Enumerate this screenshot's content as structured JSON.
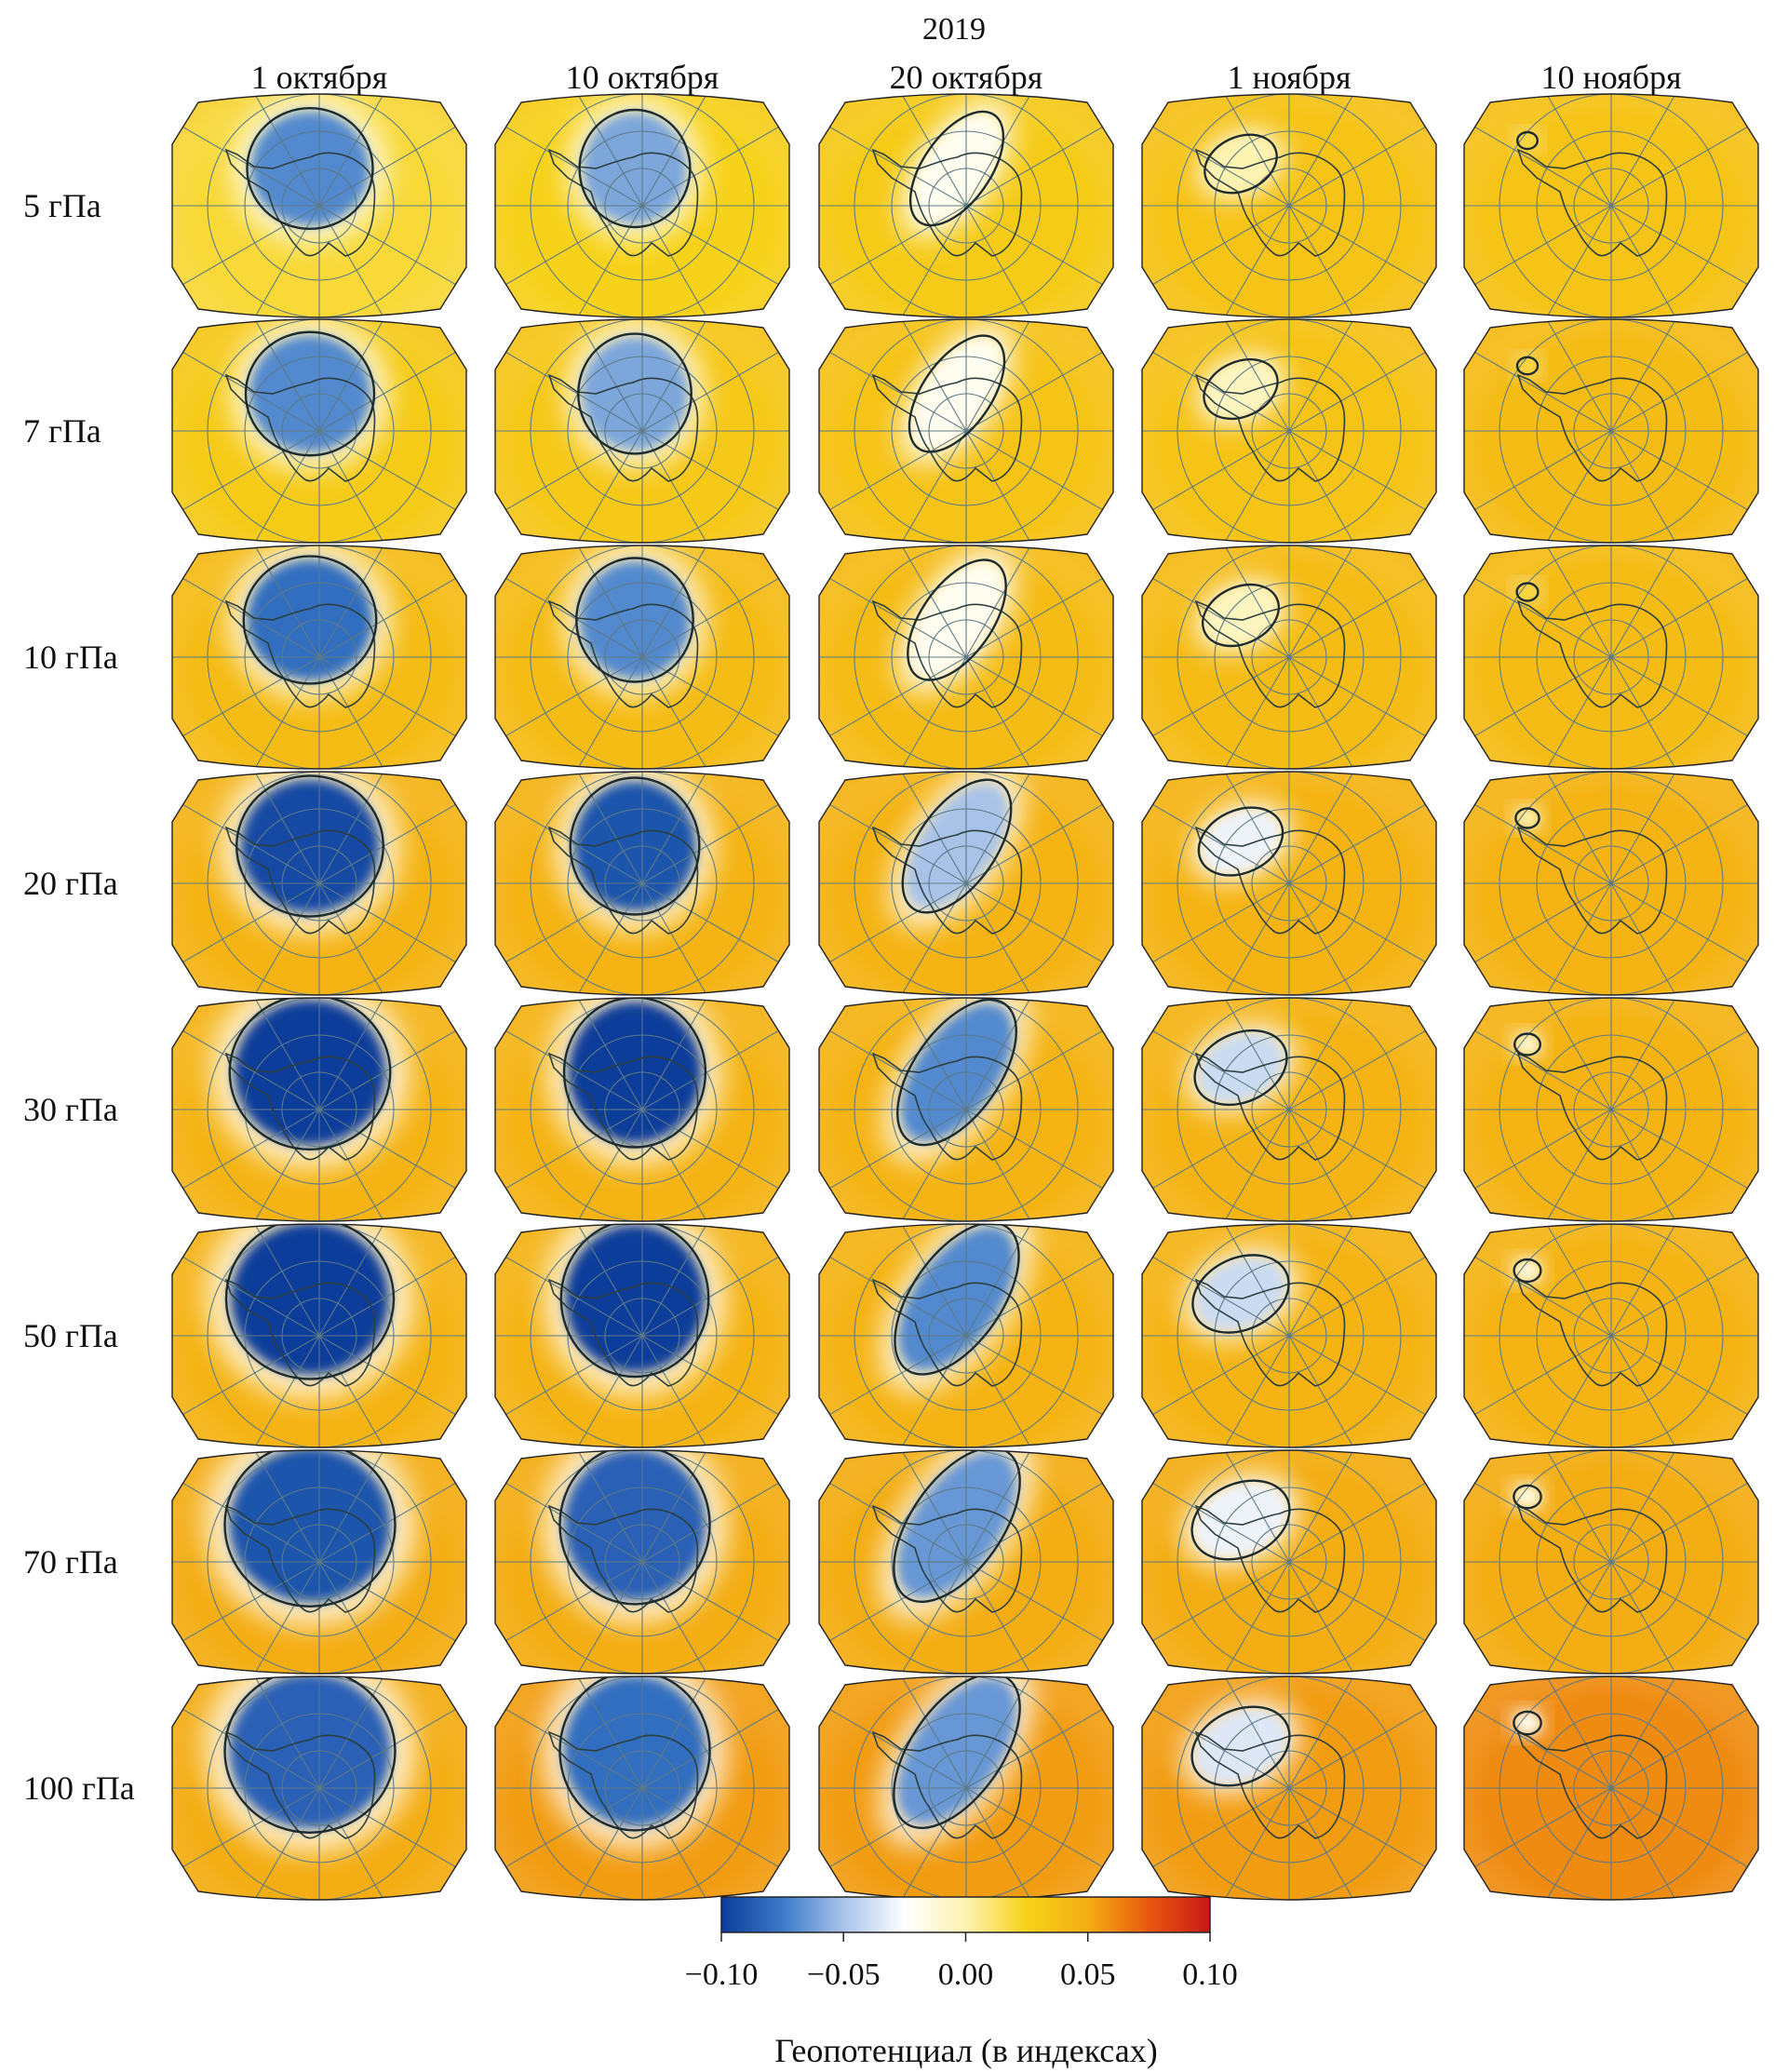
{
  "chart_data": {
    "type": "heatmap",
    "title": "2019",
    "columns": [
      "1 октября",
      "10 октября",
      "20 октября",
      "1 ноября",
      "10 ноября"
    ],
    "rows": [
      "5 гПа",
      "7 гПа",
      "10 гПа",
      "20 гПа",
      "30 гПа",
      "50 гПа",
      "70 гПа",
      "100 гПа"
    ],
    "colorbar": {
      "label": "Геопотенциал (в индексах)",
      "min": -0.1,
      "max": 0.1,
      "ticks": [
        "−0.10",
        "−0.05",
        "0.00",
        "0.05",
        "0.10"
      ],
      "colors": [
        "#0c3c9a",
        "#3c7ac8",
        "#a9c3e8",
        "#ffffff",
        "#fdf3b0",
        "#f7d21a",
        "#f4ad12",
        "#e8580f",
        "#c81818"
      ]
    },
    "vortex_min_index": [
      [
        -0.07,
        -0.06,
        -0.02,
        0.0,
        0.02
      ],
      [
        -0.07,
        -0.06,
        -0.02,
        -0.005,
        0.02
      ],
      [
        -0.08,
        -0.07,
        -0.02,
        -0.005,
        0.02
      ],
      [
        -0.095,
        -0.09,
        -0.05,
        -0.03,
        0.0
      ],
      [
        -0.1,
        -0.1,
        -0.07,
        -0.04,
        -0.01
      ],
      [
        -0.1,
        -0.1,
        -0.07,
        -0.04,
        -0.015
      ],
      [
        -0.09,
        -0.085,
        -0.065,
        -0.03,
        -0.015
      ],
      [
        -0.085,
        -0.08,
        -0.065,
        -0.035,
        -0.02
      ]
    ],
    "background_index": [
      [
        0.02,
        0.025,
        0.03,
        0.035,
        0.035
      ],
      [
        0.03,
        0.032,
        0.035,
        0.035,
        0.04
      ],
      [
        0.04,
        0.04,
        0.04,
        0.04,
        0.04
      ],
      [
        0.045,
        0.045,
        0.045,
        0.045,
        0.045
      ],
      [
        0.045,
        0.045,
        0.045,
        0.045,
        0.045
      ],
      [
        0.045,
        0.045,
        0.045,
        0.045,
        0.045
      ],
      [
        0.05,
        0.05,
        0.05,
        0.05,
        0.05
      ],
      [
        0.05,
        0.055,
        0.055,
        0.055,
        0.06
      ]
    ],
    "grid": true,
    "legend": "bottom"
  }
}
